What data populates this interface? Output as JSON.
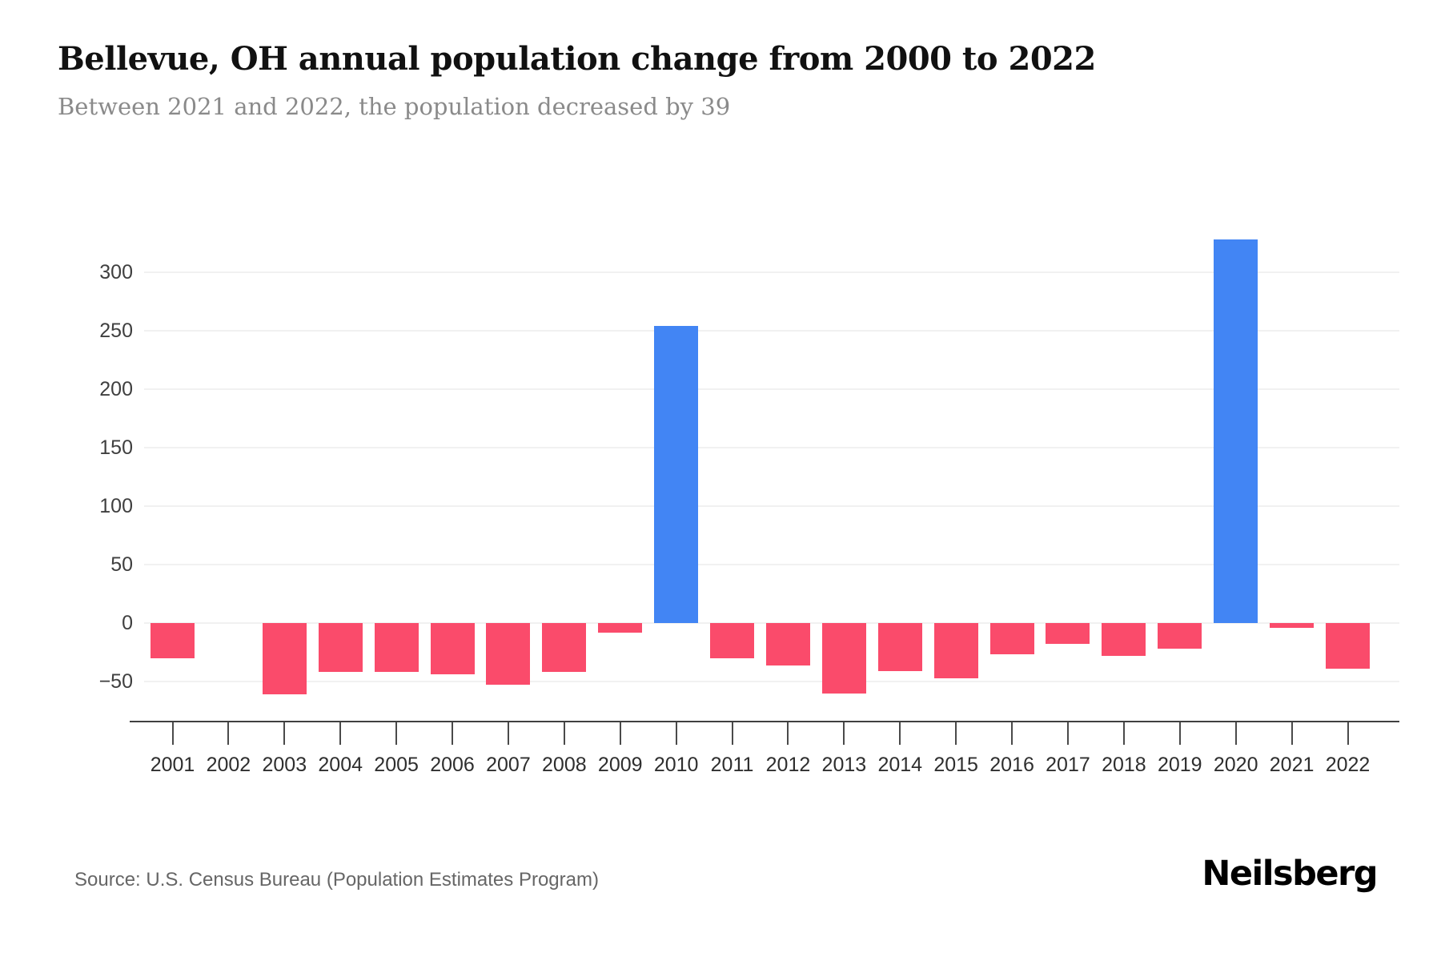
{
  "header": {
    "title": "Bellevue, OH annual population change from 2000 to 2022",
    "subtitle": "Between 2021 and 2022, the population decreased by 39"
  },
  "footer": {
    "source": "Source: U.S. Census Bureau (Population Estimates Program)",
    "logo": "Neilsberg"
  },
  "chart_data": {
    "type": "bar",
    "title": "Bellevue, OH annual population change from 2000 to 2022",
    "subtitle": "Between 2021 and 2022, the population decreased by 39",
    "categories": [
      "2001",
      "2002",
      "2003",
      "2004",
      "2005",
      "2006",
      "2007",
      "2008",
      "2009",
      "2010",
      "2011",
      "2012",
      "2013",
      "2014",
      "2015",
      "2016",
      "2017",
      "2018",
      "2019",
      "2020",
      "2021",
      "2022"
    ],
    "values": [
      -30,
      0,
      -61,
      -42,
      -42,
      -44,
      -53,
      -42,
      -8,
      254,
      -30,
      -36,
      -60,
      -41,
      -47,
      -27,
      -18,
      -28,
      -22,
      328,
      -4,
      -39
    ],
    "xlabel": "",
    "ylabel": "",
    "ylim": [
      -75,
      340
    ],
    "grid": true,
    "legend": false,
    "colors": {
      "positive": "#4285F4",
      "negative": "#FA4B6B"
    },
    "yticks": [
      {
        "value": 300,
        "label": "300"
      },
      {
        "value": 250,
        "label": "250"
      },
      {
        "value": 200,
        "label": "200"
      },
      {
        "value": 150,
        "label": "150"
      },
      {
        "value": 100,
        "label": "100"
      },
      {
        "value": 50,
        "label": "50"
      },
      {
        "value": 0,
        "label": "0"
      },
      {
        "value": -50,
        "label": "−50"
      }
    ]
  }
}
